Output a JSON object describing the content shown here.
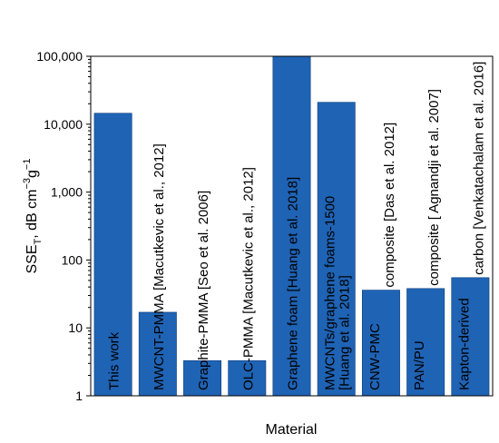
{
  "chart_data": {
    "type": "bar",
    "xlabel": "Material",
    "ylabel_main": "SSE",
    "ylabel_sub": "T",
    "ylabel_rest": ", dB cm",
    "ylabel_exp1": "−3",
    "ylabel_g": "g",
    "ylabel_exp2": "−1",
    "yscale": "log",
    "ylim": [
      1,
      100000
    ],
    "yticks": [
      {
        "value": 1,
        "label": "1"
      },
      {
        "value": 10,
        "label": "10"
      },
      {
        "value": 100,
        "label": "100"
      },
      {
        "value": 1000,
        "label": "1,000"
      },
      {
        "value": 10000,
        "label": "10,000"
      },
      {
        "value": 100000,
        "label": "100,000"
      }
    ],
    "bar_color": "#1f63b5",
    "bars": [
      {
        "value": 14500,
        "label_in": "This work",
        "label_out": [],
        "color": "#ffffff"
      },
      {
        "value": 17,
        "label_in": "",
        "label_out": [
          "MWCNT-PMMA [Macutkevic et al., 2012]"
        ],
        "color": "#000000"
      },
      {
        "value": 3.3,
        "label_in": "",
        "label_out": [
          "Graphite-PMMA [Seo et al. 2006]"
        ],
        "color": "#000000"
      },
      {
        "value": 3.3,
        "label_in": "",
        "label_out": [
          "OLC-PMMA [Macutkevic et al., 2012]"
        ],
        "color": "#000000"
      },
      {
        "value": 100000,
        "label_in": "Graphene foam [Huang et al. 2018]",
        "label_out": [],
        "color": "#000000"
      },
      {
        "value": 21000,
        "label_in": "",
        "label_out": [
          "MWCNTs/graphene foams-1500",
          "[Huang et al. 2018]"
        ],
        "color": "#000000"
      },
      {
        "value": 36,
        "label_in": "CNW-PMC",
        "label_out": [
          "composite [Das et al. 2012]"
        ],
        "color": "#000000"
      },
      {
        "value": 38,
        "label_in": "PAN/PU",
        "label_out": [
          "composite [ Agnandji et al. 2007]"
        ],
        "color": "#000000"
      },
      {
        "value": 55,
        "label_in": "Kapton-derived",
        "label_out": [
          "carbon [Venkatachalam et al. 2016]"
        ],
        "color": "#000000"
      }
    ]
  }
}
